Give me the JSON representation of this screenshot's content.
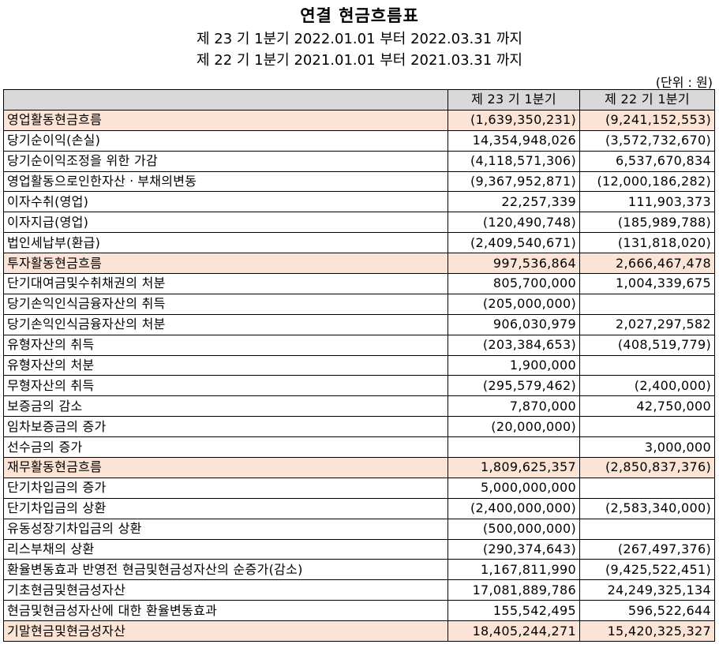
{
  "title": "연결 현금흐름표",
  "period_current": "제 23 기 1분기 2022.01.01 부터 2022.03.31 까지",
  "period_prior": "제 22 기 1분기 2021.01.01 부터 2021.03.31 까지",
  "unit": "(단위 : 원)",
  "header": {
    "col_label": "",
    "col_current": "제 23 기 1분기",
    "col_prior": "제 22 기 1분기"
  },
  "rows": [
    {
      "label": "영업활동현금흐름",
      "current": "(1,639,350,231)",
      "prior": "(9,241,152,553)",
      "type": "section"
    },
    {
      "label": "당기순이익(손실)",
      "current": "14,354,948,026",
      "prior": "(3,572,732,670)",
      "type": "item"
    },
    {
      "label": "당기순이익조정을 위한 가감",
      "current": "(4,118,571,306)",
      "prior": "6,537,670,834",
      "type": "item"
    },
    {
      "label": "영업활동으로인한자산ㆍ부채의변동",
      "current": "(9,367,952,871)",
      "prior": "(12,000,186,282)",
      "type": "item"
    },
    {
      "label": "이자수취(영업)",
      "current": "22,257,339",
      "prior": "111,903,373",
      "type": "item"
    },
    {
      "label": "이자지급(영업)",
      "current": "(120,490,748)",
      "prior": "(185,989,788)",
      "type": "item"
    },
    {
      "label": "법인세납부(환급)",
      "current": "(2,409,540,671)",
      "prior": "(131,818,020)",
      "type": "item"
    },
    {
      "label": "투자활동현금흐름",
      "current": "997,536,864",
      "prior": "2,666,467,478",
      "type": "section"
    },
    {
      "label": "단기대여금및수취채권의 처분",
      "current": "805,700,000",
      "prior": "1,004,339,675",
      "type": "item"
    },
    {
      "label": "당기손익인식금융자산의 취득",
      "current": "(205,000,000)",
      "prior": "",
      "type": "item"
    },
    {
      "label": "당기손익인식금융자산의 처분",
      "current": "906,030,979",
      "prior": "2,027,297,582",
      "type": "item"
    },
    {
      "label": "유형자산의 취득",
      "current": "(203,384,653)",
      "prior": "(408,519,779)",
      "type": "item"
    },
    {
      "label": "유형자산의 처분",
      "current": "1,900,000",
      "prior": "",
      "type": "item"
    },
    {
      "label": "무형자산의 취득",
      "current": "(295,579,462)",
      "prior": "(2,400,000)",
      "type": "item"
    },
    {
      "label": "보증금의 감소",
      "current": "7,870,000",
      "prior": "42,750,000",
      "type": "item"
    },
    {
      "label": "임차보증금의 증가",
      "current": "(20,000,000)",
      "prior": "",
      "type": "item"
    },
    {
      "label": "선수금의 증가",
      "current": "",
      "prior": "3,000,000",
      "type": "item"
    },
    {
      "label": "재무활동현금흐름",
      "current": "1,809,625,357",
      "prior": "(2,850,837,376)",
      "type": "section"
    },
    {
      "label": "단기차입금의 증가",
      "current": "5,000,000,000",
      "prior": "",
      "type": "item"
    },
    {
      "label": "단기차입금의 상환",
      "current": "(2,400,000,000)",
      "prior": "(2,583,340,000)",
      "type": "item"
    },
    {
      "label": "유동성장기차입금의 상환",
      "current": "(500,000,000)",
      "prior": "",
      "type": "item"
    },
    {
      "label": "리스부채의 상환",
      "current": "(290,374,643)",
      "prior": "(267,497,376)",
      "type": "item"
    },
    {
      "label": "환율변동효과 반영전 현금및현금성자산의 순증가(감소)",
      "current": "1,167,811,990",
      "prior": "(9,425,522,451)",
      "type": "total"
    },
    {
      "label": "기초현금및현금성자산",
      "current": "17,081,889,786",
      "prior": "24,249,325,134",
      "type": "total"
    },
    {
      "label": "현금및현금성자산에 대한 환율변동효과",
      "current": "155,542,495",
      "prior": "596,522,644",
      "type": "total"
    },
    {
      "label": "기말현금및현금성자산",
      "current": "18,405,244,271",
      "prior": "15,420,325,327",
      "type": "section"
    }
  ],
  "colors": {
    "header_bg": "#d9d9d9",
    "section_bg": "#fbe4d5"
  }
}
